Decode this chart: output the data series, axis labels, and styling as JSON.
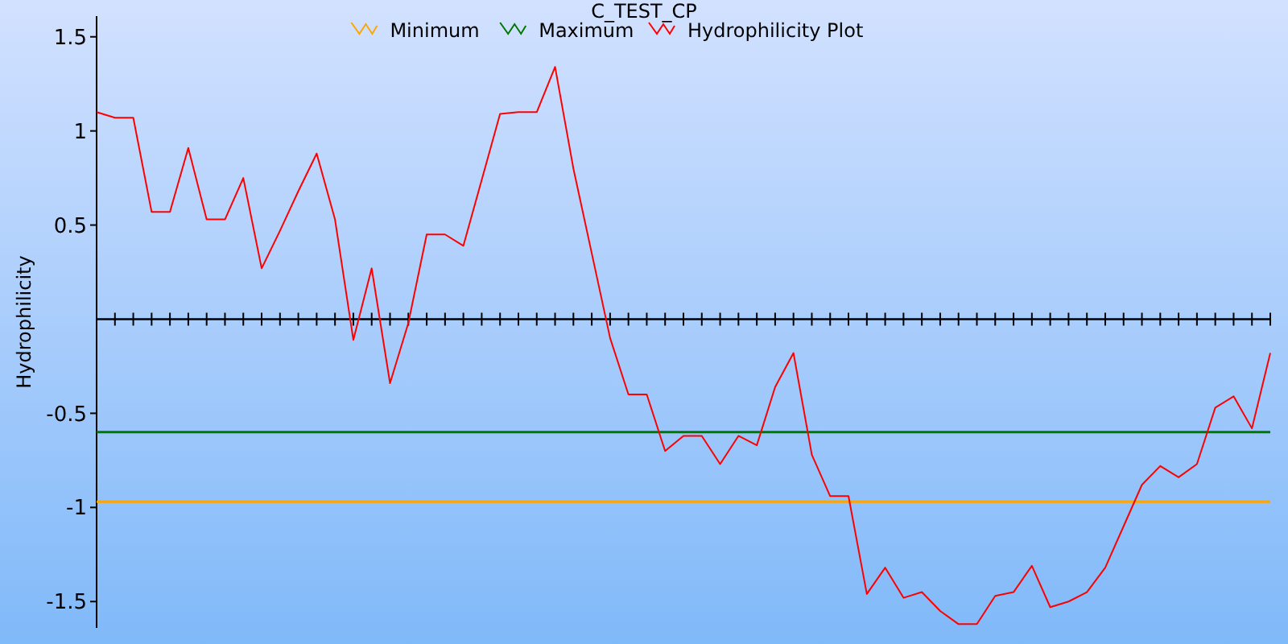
{
  "chart_data": {
    "type": "line",
    "title": "C_TEST_CP",
    "ylabel": "Hydrophilicity",
    "categories": [
      null,
      null,
      null,
      null,
      null,
      null,
      null,
      null,
      null,
      null,
      null,
      null,
      null,
      null,
      null,
      null,
      null,
      null,
      null,
      null,
      null,
      null,
      null,
      null,
      null,
      null,
      null,
      null,
      null,
      null,
      null,
      null,
      null,
      null,
      null,
      null,
      null,
      null,
      null,
      null,
      null,
      null,
      null,
      null,
      null,
      null,
      null,
      null,
      null,
      null,
      null,
      null,
      null,
      null,
      null,
      null,
      null,
      null,
      null,
      null,
      null,
      null,
      null,
      null,
      null
    ],
    "series": [
      {
        "name": "Minimum",
        "color": "#ffa500",
        "values": [
          -0.97,
          -0.97,
          -0.97,
          -0.97,
          -0.97,
          -0.97,
          -0.97,
          -0.97,
          -0.97,
          -0.97,
          -0.97,
          -0.97,
          -0.97,
          -0.97,
          -0.97,
          -0.97,
          -0.97,
          -0.97,
          -0.97,
          -0.97,
          -0.97,
          -0.97,
          -0.97,
          -0.97,
          -0.97,
          -0.97,
          -0.97,
          -0.97,
          -0.97,
          -0.97,
          -0.97,
          -0.97,
          -0.97,
          -0.97,
          -0.97,
          -0.97,
          -0.97,
          -0.97,
          -0.97,
          -0.97,
          -0.97,
          -0.97,
          -0.97,
          -0.97,
          -0.97,
          -0.97,
          -0.97,
          -0.97,
          -0.97,
          -0.97,
          -0.97,
          -0.97,
          -0.97,
          -0.97,
          -0.97,
          -0.97,
          -0.97,
          -0.97,
          -0.97,
          -0.97,
          -0.97,
          -0.97,
          -0.97,
          -0.97,
          -0.97
        ]
      },
      {
        "name": "Maximum",
        "color": "#007800",
        "values": [
          -0.6,
          -0.6,
          -0.6,
          -0.6,
          -0.6,
          -0.6,
          -0.6,
          -0.6,
          -0.6,
          -0.6,
          -0.6,
          -0.6,
          -0.6,
          -0.6,
          -0.6,
          -0.6,
          -0.6,
          -0.6,
          -0.6,
          -0.6,
          -0.6,
          -0.6,
          -0.6,
          -0.6,
          -0.6,
          -0.6,
          -0.6,
          -0.6,
          -0.6,
          -0.6,
          -0.6,
          -0.6,
          -0.6,
          -0.6,
          -0.6,
          -0.6,
          -0.6,
          -0.6,
          -0.6,
          -0.6,
          -0.6,
          -0.6,
          -0.6,
          -0.6,
          -0.6,
          -0.6,
          -0.6,
          -0.6,
          -0.6,
          -0.6,
          -0.6,
          -0.6,
          -0.6,
          -0.6,
          -0.6,
          -0.6,
          -0.6,
          -0.6,
          -0.6,
          -0.6,
          -0.6,
          -0.6,
          -0.6,
          -0.6,
          -0.6
        ]
      },
      {
        "name": "Hydrophilicity Plot",
        "color": "#ff0000",
        "values": [
          1.1,
          1.07,
          1.07,
          0.57,
          0.57,
          0.91,
          0.53,
          0.53,
          0.75,
          0.27,
          0.47,
          0.68,
          0.88,
          0.53,
          -0.11,
          0.27,
          -0.34,
          -0.02,
          0.45,
          0.45,
          0.39,
          0.74,
          1.09,
          1.1,
          1.1,
          1.34,
          0.8,
          0.35,
          -0.1,
          -0.4,
          -0.4,
          -0.7,
          -0.62,
          -0.62,
          -0.77,
          -0.62,
          -0.67,
          -0.36,
          -0.18,
          -0.72,
          -0.94,
          -0.94,
          -1.46,
          -1.32,
          -1.48,
          -1.45,
          -1.55,
          -1.62,
          -1.62,
          -1.47,
          -1.45,
          -1.31,
          -1.53,
          -1.5,
          -1.45,
          -1.32,
          -1.1,
          -0.88,
          -0.78,
          -0.84,
          -0.77,
          -0.47,
          -0.41,
          -0.58,
          -0.18
        ]
      }
    ],
    "ylim": [
      -1.64,
      1.61
    ],
    "yticks": [
      -1.5,
      -1,
      -0.5,
      1,
      0.5,
      1.5
    ],
    "legend": "top",
    "grid": false,
    "marker": "none",
    "line_style": "solid"
  }
}
